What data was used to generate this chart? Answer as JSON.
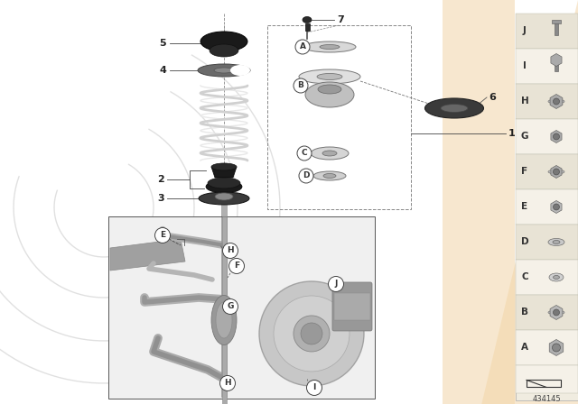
{
  "bg_color": "#f0f0f0",
  "main_bg": "#ffffff",
  "peach_color": "#f2d5a8",
  "part_id": "434145",
  "legend_letters": [
    "J",
    "I",
    "H",
    "G",
    "F",
    "E",
    "D",
    "C",
    "B",
    "A"
  ]
}
